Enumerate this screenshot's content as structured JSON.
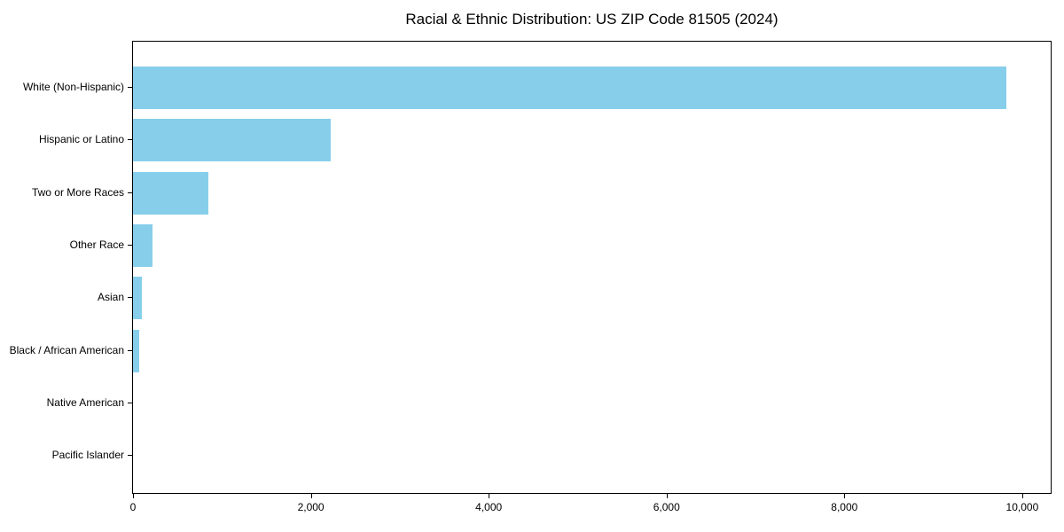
{
  "chart_data": {
    "type": "bar",
    "orientation": "horizontal",
    "title": "Racial & Ethnic Distribution: US ZIP Code 81505 (2024)",
    "categories": [
      "White (Non-Hispanic)",
      "Hispanic or Latino",
      "Two or More Races",
      "Other Race",
      "Asian",
      "Black / African American",
      "Native American",
      "Pacific Islander"
    ],
    "values": [
      9820,
      2220,
      850,
      220,
      100,
      70,
      0,
      0
    ],
    "xlabel": "",
    "ylabel": "",
    "xlim": [
      0,
      10320
    ],
    "xticks": [
      {
        "value": 0,
        "label": "0"
      },
      {
        "value": 2000,
        "label": "2,000"
      },
      {
        "value": 4000,
        "label": "4,000"
      },
      {
        "value": 6000,
        "label": "6,000"
      },
      {
        "value": 8000,
        "label": "8,000"
      },
      {
        "value": 10000,
        "label": "10,000"
      }
    ],
    "bar_color": "#87CEEB",
    "text_color": "#000000",
    "grid": false,
    "legend": false
  }
}
